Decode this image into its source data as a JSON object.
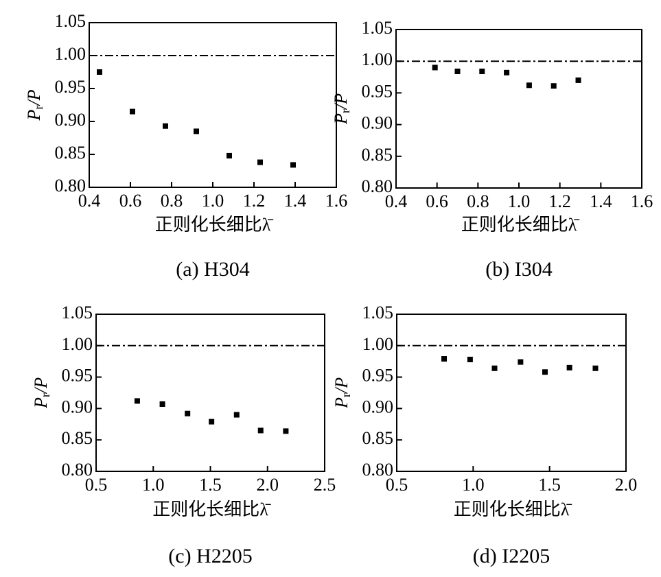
{
  "chart_data": [
    {
      "type": "scatter",
      "caption": "(a) H304",
      "xlabel": "正则化长细比λ̄",
      "ylabel": [
        "P",
        "r",
        "/P"
      ],
      "color": "#000000",
      "reference_line": 1,
      "xlim": [
        0.4,
        1.6
      ],
      "xticks": [
        0.4,
        0.6,
        0.8,
        {
          "value": 1,
          "label": "1.0"
        },
        1.2,
        1.4,
        1.6
      ],
      "ylim": [
        0.8,
        1.05
      ],
      "yticks": [
        {
          "value": 0.8,
          "label": "0.80"
        },
        0.85,
        {
          "value": 0.9,
          "label": "0.90"
        },
        0.95,
        {
          "value": 1,
          "label": "1.00"
        },
        1.05
      ],
      "x": [
        0.45,
        0.61,
        0.77,
        0.92,
        1.08,
        1.23,
        1.39
      ],
      "values": [
        0.975,
        0.915,
        0.893,
        0.885,
        0.848,
        0.838,
        0.834
      ]
    },
    {
      "type": "scatter",
      "caption": "(b) I304",
      "xlabel": "正则化长细比λ̄",
      "ylabel": [
        "P",
        "r",
        "/P"
      ],
      "color": "#000000",
      "reference_line": 1,
      "xlim": [
        0.4,
        1.6
      ],
      "xticks": [
        0.4,
        0.6,
        0.8,
        {
          "value": 1,
          "label": "1.0"
        },
        1.2,
        1.4,
        1.6
      ],
      "ylim": [
        0.8,
        1.05
      ],
      "yticks": [
        {
          "value": 0.8,
          "label": "0.80"
        },
        0.85,
        {
          "value": 0.9,
          "label": "0.90"
        },
        0.95,
        {
          "value": 1,
          "label": "1.00"
        },
        1.05
      ],
      "x": [
        0.59,
        0.7,
        0.82,
        0.94,
        1.05,
        1.17,
        1.29
      ],
      "values": [
        0.99,
        0.984,
        0.984,
        0.982,
        0.962,
        0.961,
        0.97
      ]
    },
    {
      "type": "scatter",
      "caption": "(c) H2205",
      "xlabel": "正则化长细比λ̄",
      "ylabel": [
        "P",
        "r",
        "/P"
      ],
      "color": "#000000",
      "reference_line": 1,
      "xlim": [
        0.5,
        2.5
      ],
      "xticks": [
        0.5,
        {
          "value": 1,
          "label": "1.0"
        },
        1.5,
        {
          "value": 2,
          "label": "2.0"
        },
        2.5
      ],
      "ylim": [
        0.8,
        1.05
      ],
      "yticks": [
        {
          "value": 0.8,
          "label": "0.80"
        },
        0.85,
        {
          "value": 0.9,
          "label": "0.90"
        },
        0.95,
        {
          "value": 1,
          "label": "1.00"
        },
        1.05
      ],
      "x": [
        0.86,
        1.08,
        1.3,
        1.51,
        1.73,
        1.94,
        2.16
      ],
      "values": [
        0.912,
        0.907,
        0.892,
        0.879,
        0.89,
        0.865,
        0.864
      ]
    },
    {
      "type": "scatter",
      "caption": "(d) I2205",
      "xlabel": "正则化长细比λ̄",
      "ylabel": [
        "P",
        "r",
        "/P"
      ],
      "color": "#000000",
      "reference_line": 1,
      "xlim": [
        0.5,
        2.0
      ],
      "xticks": [
        0.5,
        {
          "value": 1,
          "label": "1.0"
        },
        1.5,
        {
          "value": 2,
          "label": "2.0"
        }
      ],
      "ylim": [
        0.8,
        1.05
      ],
      "yticks": [
        {
          "value": 0.8,
          "label": "0.80"
        },
        0.85,
        {
          "value": 0.9,
          "label": "0.90"
        },
        0.95,
        {
          "value": 1,
          "label": "1.00"
        },
        1.05
      ],
      "x": [
        0.81,
        0.98,
        1.14,
        1.31,
        1.47,
        1.63,
        1.8
      ],
      "values": [
        0.979,
        0.978,
        0.964,
        0.974,
        0.958,
        0.965,
        0.964
      ]
    }
  ]
}
